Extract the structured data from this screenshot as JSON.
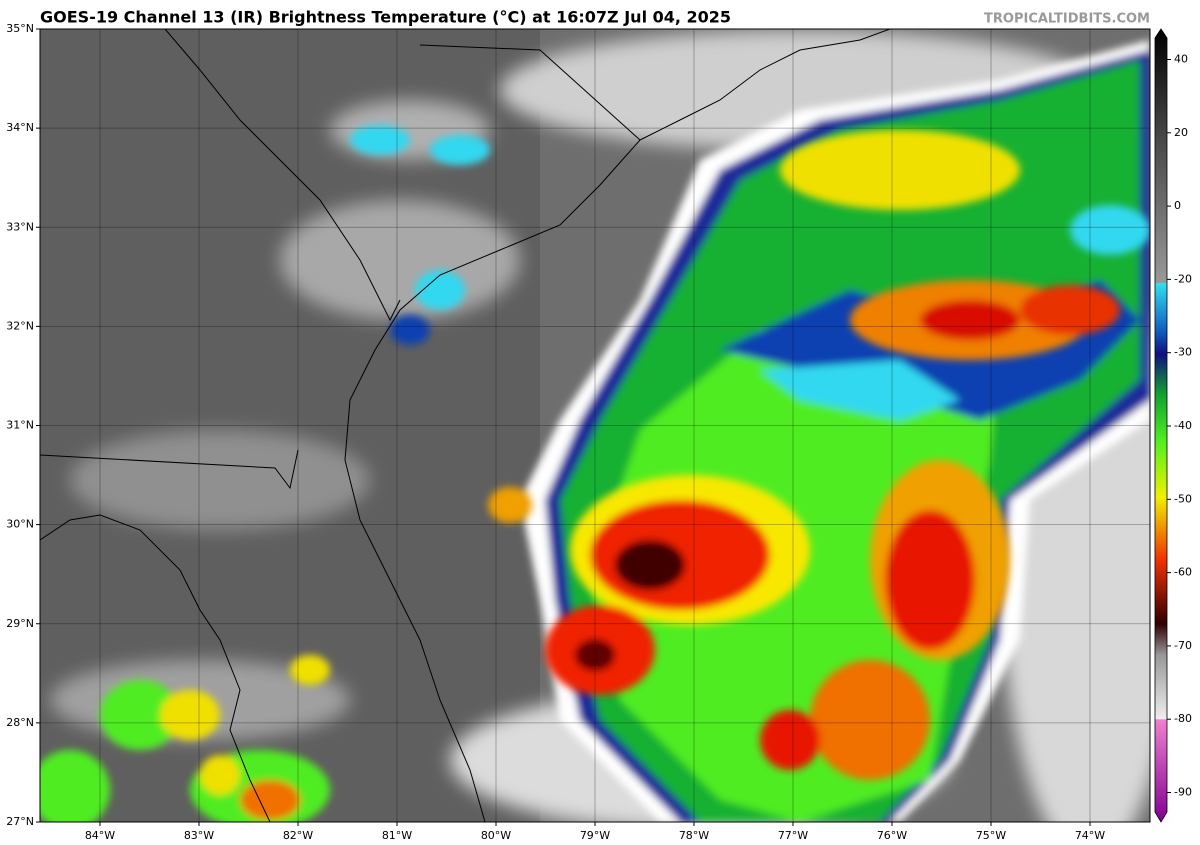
{
  "header": {
    "title": "GOES-19 Channel 13 (IR) Brightness Temperature (°C) at 16:07Z Jul 04, 2025",
    "watermark": "TROPICALTIDBITS.COM"
  },
  "map": {
    "lat_labels": [
      "35°N",
      "34°N",
      "33°N",
      "32°N",
      "31°N",
      "30°N",
      "29°N",
      "28°N",
      "27°N"
    ],
    "lon_labels": [
      "84°W",
      "83°W",
      "82°W",
      "81°W",
      "80°W",
      "79°W",
      "78°W",
      "77°W",
      "76°W",
      "75°W",
      "74°W"
    ]
  },
  "colorbar": {
    "ticks": [
      40,
      20,
      0,
      -20,
      -30,
      -40,
      -50,
      -60,
      -70,
      -80,
      -90
    ]
  }
}
